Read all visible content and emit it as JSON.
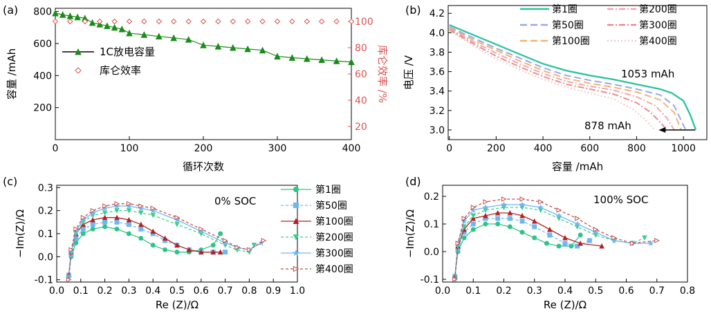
{
  "panels": {
    "a": {
      "label": "(a)"
    },
    "b": {
      "label": "(b)"
    },
    "c": {
      "label": "(c)",
      "annotation": "0% SOC"
    },
    "d": {
      "label": "(d)",
      "annotation": "100% SOC"
    }
  },
  "colors": {
    "green_capacity": "#1a8c1a",
    "efficiency_red": "#d9534f",
    "red_axis": "#d9534f",
    "cycle_1": "#2ec4a0",
    "cycle_50": "#9aa7e6",
    "cycle_100": "#f0b27a",
    "cycle_200": "#f2a6a6",
    "cycle_300": "#e88b8b",
    "cycle_400": "#f4c9c9",
    "eis_1": "#2ec488",
    "eis_50": "#6fb7f0",
    "eis_100": "#b22222",
    "eis_200": "#3dcf8f",
    "eis_300": "#6fb7f0",
    "eis_400": "#c0504d"
  },
  "chart_data": [
    {
      "id": "a",
      "type": "scatter",
      "xlabel": "循环次数",
      "ylabel": "容量 /mAh",
      "ylabel_right": "库仑效率 /%",
      "xlim": [
        0,
        400
      ],
      "ylim": [
        0,
        820
      ],
      "ylim_right": [
        10,
        110
      ],
      "xticks": [
        0,
        100,
        200,
        300,
        400
      ],
      "yticks": [
        200,
        400,
        600,
        800
      ],
      "yticks_right": [
        20,
        40,
        60,
        80,
        100
      ],
      "legend_position": "upper-left",
      "series": [
        {
          "name": "1C放电容量",
          "axis": "left",
          "marker": "triangle",
          "x": [
            0,
            10,
            20,
            30,
            40,
            50,
            60,
            70,
            80,
            90,
            100,
            120,
            140,
            160,
            180,
            200,
            220,
            240,
            260,
            280,
            300,
            320,
            340,
            360,
            380,
            400
          ],
          "y": [
            790,
            780,
            772,
            765,
            758,
            730,
            720,
            710,
            700,
            690,
            665,
            655,
            645,
            635,
            625,
            590,
            582,
            574,
            566,
            558,
            520,
            512,
            505,
            498,
            491,
            485
          ]
        },
        {
          "name": "库仑效率",
          "axis": "right",
          "marker": "diamond",
          "x": [
            0,
            20,
            40,
            60,
            80,
            100,
            120,
            140,
            160,
            180,
            200,
            220,
            240,
            260,
            280,
            300,
            320,
            340,
            360,
            380,
            400
          ],
          "y": [
            100,
            100,
            100,
            100,
            100,
            100,
            100,
            100,
            100,
            100,
            100,
            100,
            100,
            100,
            100,
            100,
            100,
            100,
            100,
            100,
            100
          ]
        }
      ]
    },
    {
      "id": "b",
      "type": "line",
      "xlabel": "容量 /mAh",
      "ylabel": "电压 /V",
      "xlim": [
        -5,
        1100
      ],
      "ylim": [
        2.9,
        4.28
      ],
      "xticks": [
        0,
        200,
        400,
        600,
        800,
        1000
      ],
      "yticks": [
        3.0,
        3.2,
        3.4,
        3.6,
        3.8,
        4.0,
        4.2
      ],
      "annotations": [
        "1053 mAh",
        "878 mAh"
      ],
      "legend_position": "top-right",
      "series": [
        {
          "name": "第1圈",
          "x": [
            0,
            100,
            200,
            300,
            400,
            500,
            600,
            700,
            800,
            900,
            950,
            1000,
            1030,
            1053
          ],
          "y": [
            4.08,
            3.98,
            3.88,
            3.78,
            3.68,
            3.61,
            3.56,
            3.52,
            3.47,
            3.42,
            3.38,
            3.3,
            3.15,
            3.0
          ]
        },
        {
          "name": "第50圈",
          "x": [
            0,
            100,
            200,
            300,
            400,
            500,
            600,
            700,
            800,
            900,
            960,
            1010
          ],
          "y": [
            4.06,
            3.95,
            3.84,
            3.74,
            3.64,
            3.56,
            3.51,
            3.47,
            3.42,
            3.36,
            3.25,
            3.0
          ]
        },
        {
          "name": "第100圈",
          "x": [
            0,
            100,
            200,
            300,
            400,
            500,
            600,
            700,
            800,
            900,
            960,
            990
          ],
          "y": [
            4.05,
            3.93,
            3.82,
            3.71,
            3.61,
            3.53,
            3.48,
            3.44,
            3.39,
            3.31,
            3.18,
            3.0
          ]
        },
        {
          "name": "第200圈",
          "x": [
            0,
            100,
            200,
            300,
            400,
            500,
            600,
            700,
            800,
            880,
            930,
            960
          ],
          "y": [
            4.04,
            3.91,
            3.79,
            3.68,
            3.58,
            3.5,
            3.45,
            3.41,
            3.34,
            3.25,
            3.12,
            3.0
          ]
        },
        {
          "name": "第300圈",
          "x": [
            0,
            100,
            200,
            300,
            400,
            500,
            600,
            700,
            800,
            860,
            900,
            930
          ],
          "y": [
            4.03,
            3.89,
            3.76,
            3.65,
            3.55,
            3.47,
            3.42,
            3.37,
            3.28,
            3.18,
            3.08,
            3.0
          ]
        },
        {
          "name": "第400圈",
          "x": [
            0,
            100,
            200,
            300,
            400,
            500,
            600,
            700,
            780,
            830,
            860,
            878
          ],
          "y": [
            4.02,
            3.87,
            3.73,
            3.62,
            3.52,
            3.44,
            3.38,
            3.32,
            3.22,
            3.12,
            3.05,
            3.0
          ]
        }
      ]
    },
    {
      "id": "c",
      "type": "scatter",
      "xlabel": "Re (Z)/Ω",
      "ylabel": "−Im(Z)/Ω",
      "xlim": [
        0.0,
        1.0
      ],
      "ylim": [
        -0.11,
        0.31
      ],
      "xticks": [
        0.0,
        0.1,
        0.2,
        0.3,
        0.4,
        0.5,
        0.6,
        0.7,
        0.8,
        0.9,
        1.0
      ],
      "yticks": [
        -0.1,
        0.0,
        0.1,
        0.2,
        0.3
      ],
      "legend_position": "right",
      "series": [
        {
          "name": "第1圈",
          "marker": "circle",
          "x": [
            0.05,
            0.06,
            0.08,
            0.11,
            0.15,
            0.2,
            0.25,
            0.3,
            0.35,
            0.4,
            0.45,
            0.5,
            0.55,
            0.6,
            0.65,
            0.68
          ],
          "y": [
            -0.08,
            0.0,
            0.06,
            0.1,
            0.12,
            0.13,
            0.12,
            0.1,
            0.08,
            0.05,
            0.03,
            0.02,
            0.02,
            0.03,
            0.05,
            0.1
          ]
        },
        {
          "name": "第50圈",
          "marker": "square",
          "x": [
            0.05,
            0.06,
            0.08,
            0.11,
            0.15,
            0.2,
            0.25,
            0.3,
            0.35,
            0.4,
            0.45,
            0.5,
            0.55,
            0.6,
            0.65,
            0.7
          ],
          "y": [
            -0.08,
            0.01,
            0.08,
            0.12,
            0.14,
            0.15,
            0.15,
            0.14,
            0.12,
            0.1,
            0.07,
            0.05,
            0.03,
            0.02,
            0.02,
            0.02
          ]
        },
        {
          "name": "第100圈",
          "marker": "triangle-up",
          "x": [
            0.05,
            0.06,
            0.08,
            0.11,
            0.15,
            0.2,
            0.25,
            0.3,
            0.35,
            0.4,
            0.45,
            0.5,
            0.55,
            0.6,
            0.65,
            0.68
          ],
          "y": [
            -0.08,
            0.02,
            0.1,
            0.14,
            0.16,
            0.17,
            0.17,
            0.16,
            0.14,
            0.11,
            0.08,
            0.05,
            0.03,
            0.02,
            0.02,
            0.02
          ]
        },
        {
          "name": "第200圈",
          "marker": "triangle-down",
          "x": [
            0.05,
            0.06,
            0.08,
            0.11,
            0.15,
            0.2,
            0.25,
            0.3,
            0.35,
            0.4,
            0.5,
            0.6,
            0.7,
            0.75,
            0.8,
            0.82
          ],
          "y": [
            -0.09,
            0.02,
            0.1,
            0.15,
            0.18,
            0.19,
            0.2,
            0.2,
            0.19,
            0.18,
            0.14,
            0.1,
            0.05,
            0.03,
            0.02,
            0.05
          ]
        },
        {
          "name": "第300圈",
          "marker": "star",
          "x": [
            0.05,
            0.06,
            0.08,
            0.11,
            0.15,
            0.2,
            0.25,
            0.3,
            0.35,
            0.4,
            0.5,
            0.6,
            0.7,
            0.75,
            0.8,
            0.85
          ],
          "y": [
            -0.09,
            0.02,
            0.11,
            0.16,
            0.19,
            0.21,
            0.22,
            0.22,
            0.21,
            0.2,
            0.16,
            0.11,
            0.06,
            0.04,
            0.03,
            0.06
          ]
        },
        {
          "name": "第400圈",
          "marker": "triangle-right",
          "x": [
            0.05,
            0.06,
            0.08,
            0.11,
            0.15,
            0.2,
            0.25,
            0.3,
            0.35,
            0.4,
            0.5,
            0.6,
            0.7,
            0.75,
            0.8,
            0.86
          ],
          "y": [
            -0.1,
            0.03,
            0.12,
            0.17,
            0.2,
            0.22,
            0.23,
            0.23,
            0.22,
            0.21,
            0.17,
            0.12,
            0.07,
            0.04,
            0.03,
            0.07
          ]
        }
      ]
    },
    {
      "id": "d",
      "type": "scatter",
      "xlabel": "Re (Z)/Ω",
      "ylabel": "−Im(Z)/Ω",
      "xlim": [
        0.0,
        0.8
      ],
      "ylim": [
        -0.11,
        0.24
      ],
      "xticks": [
        0.0,
        0.1,
        0.2,
        0.3,
        0.4,
        0.5,
        0.6,
        0.7,
        0.8
      ],
      "yticks": [
        -0.1,
        0.0,
        0.1,
        0.2
      ],
      "series": [
        {
          "name": "第1圈",
          "marker": "circle",
          "x": [
            0.04,
            0.05,
            0.07,
            0.1,
            0.14,
            0.18,
            0.22,
            0.26,
            0.3,
            0.34,
            0.38,
            0.42,
            0.45
          ],
          "y": [
            -0.09,
            0.0,
            0.05,
            0.08,
            0.1,
            0.1,
            0.09,
            0.07,
            0.05,
            0.03,
            0.02,
            0.02,
            0.06
          ]
        },
        {
          "name": "第50圈",
          "marker": "square",
          "x": [
            0.04,
            0.05,
            0.07,
            0.1,
            0.14,
            0.18,
            0.22,
            0.26,
            0.3,
            0.35,
            0.4,
            0.44,
            0.48
          ],
          "y": [
            -0.09,
            0.01,
            0.07,
            0.1,
            0.12,
            0.12,
            0.12,
            0.11,
            0.09,
            0.06,
            0.03,
            0.02,
            0.04
          ]
        },
        {
          "name": "第100圈",
          "marker": "triangle-up",
          "x": [
            0.04,
            0.05,
            0.07,
            0.1,
            0.14,
            0.18,
            0.22,
            0.26,
            0.3,
            0.35,
            0.4,
            0.45,
            0.52
          ],
          "y": [
            -0.09,
            0.02,
            0.08,
            0.12,
            0.13,
            0.14,
            0.14,
            0.13,
            0.11,
            0.08,
            0.05,
            0.03,
            0.02
          ]
        },
        {
          "name": "第200圈",
          "marker": "triangle-down",
          "x": [
            0.04,
            0.05,
            0.07,
            0.1,
            0.14,
            0.2,
            0.26,
            0.32,
            0.38,
            0.44,
            0.5,
            0.56,
            0.62,
            0.66
          ],
          "y": [
            -0.1,
            0.02,
            0.09,
            0.13,
            0.15,
            0.16,
            0.16,
            0.15,
            0.12,
            0.09,
            0.06,
            0.04,
            0.03,
            0.05
          ]
        },
        {
          "name": "第300圈",
          "marker": "star",
          "x": [
            0.04,
            0.05,
            0.07,
            0.1,
            0.14,
            0.2,
            0.26,
            0.32,
            0.38,
            0.44,
            0.5,
            0.56,
            0.62,
            0.68
          ],
          "y": [
            -0.1,
            0.03,
            0.11,
            0.15,
            0.16,
            0.17,
            0.17,
            0.16,
            0.13,
            0.1,
            0.07,
            0.04,
            0.03,
            0.03
          ]
        },
        {
          "name": "第400圈",
          "marker": "triangle-right",
          "x": [
            0.04,
            0.05,
            0.07,
            0.1,
            0.14,
            0.2,
            0.26,
            0.32,
            0.38,
            0.44,
            0.5,
            0.56,
            0.62,
            0.7
          ],
          "y": [
            -0.1,
            0.03,
            0.12,
            0.16,
            0.18,
            0.19,
            0.19,
            0.18,
            0.15,
            0.12,
            0.08,
            0.05,
            0.03,
            0.04
          ]
        }
      ]
    }
  ]
}
